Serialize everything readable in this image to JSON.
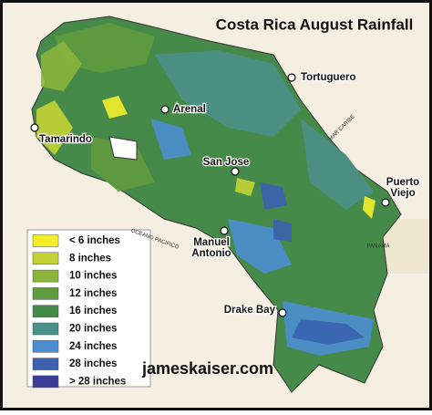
{
  "title": "Costa Rica August Rainfall",
  "legend": [
    {
      "label": "< 6 inches",
      "color": "#f2ee2a"
    },
    {
      "label": "8 inches",
      "color": "#c3d334"
    },
    {
      "label": "10 inches",
      "color": "#8ab43a"
    },
    {
      "label": "12 inches",
      "color": "#5e9a3e"
    },
    {
      "label": "16 inches",
      "color": "#468a4a"
    },
    {
      "label": "20 inches",
      "color": "#4a8f88"
    },
    {
      "label": "24 inches",
      "color": "#4a8ed0"
    },
    {
      "label": "28 inches",
      "color": "#3a62b0"
    },
    {
      "label": "> 28 inches",
      "color": "#3a3a98"
    }
  ],
  "places": [
    {
      "lines": [
        "Tortuguero"
      ]
    },
    {
      "lines": [
        "Arenal"
      ]
    },
    {
      "lines": [
        "Tamarindo"
      ]
    },
    {
      "lines": [
        "San Jose"
      ]
    },
    {
      "lines": [
        "Puerto",
        "Viejo"
      ]
    },
    {
      "lines": [
        "Manuel",
        "Antonio"
      ]
    },
    {
      "lines": [
        "Drake Bay"
      ]
    }
  ],
  "sea_labels": [
    "MAR CARIBE",
    "OCEANO PACIFICO",
    "PANAMA"
  ],
  "watermark": "jameskaiser.com"
}
